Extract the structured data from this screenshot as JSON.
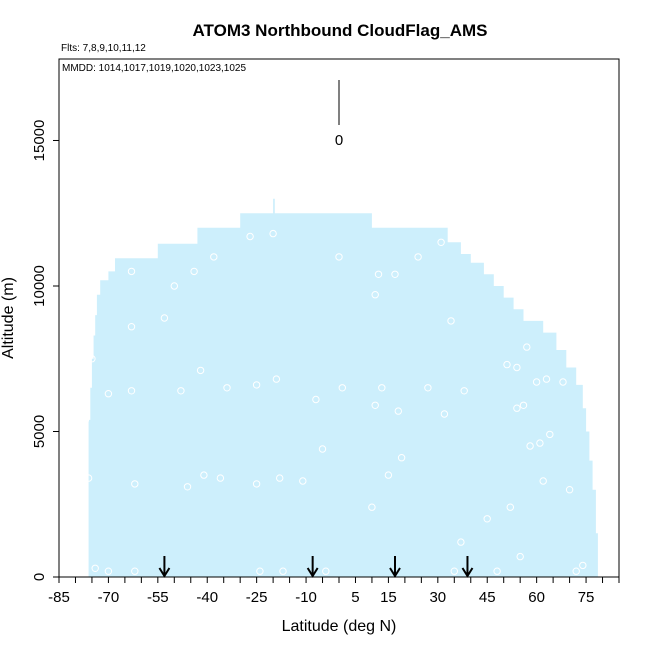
{
  "chart_data": {
    "type": "scatter",
    "title": "ATOM3 Northbound CloudFlag_AMS",
    "subtitle_flights": "Flts: 7,8,9,10,11,12",
    "subtitle_dates": "MMDD: 1014,1017,1019,1020,1023,1025",
    "xlabel": "Latitude (deg N)",
    "ylabel": "Altitude (m)",
    "xlim": [
      -85,
      85
    ],
    "ylim": [
      0,
      17800
    ],
    "x_ticks": [
      -85,
      -70,
      -55,
      -40,
      -25,
      -10,
      5,
      15,
      30,
      45,
      60,
      75
    ],
    "x_tick_labels": [
      "-85",
      "-70",
      "-55",
      "-40",
      "-25",
      "-10",
      "5",
      "15",
      "30",
      "45",
      "60",
      "75"
    ],
    "y_ticks": [
      0,
      5000,
      10000,
      15000
    ],
    "y_tick_labels": [
      "0",
      "5000",
      "10000",
      "15000"
    ],
    "legend_value_label": "0",
    "coverage_color": "#cdeffc",
    "arrow_latitudes": [
      -53,
      -8,
      17,
      39
    ],
    "coverage_profile": [
      [
        -76,
        5400
      ],
      [
        -75.5,
        6500
      ],
      [
        -75,
        7500
      ],
      [
        -74.5,
        8300
      ],
      [
        -74,
        9000
      ],
      [
        -73.5,
        9700
      ],
      [
        -72.5,
        10200
      ],
      [
        -70,
        10500
      ],
      [
        -68,
        10950
      ],
      [
        -55,
        11450
      ],
      [
        -43,
        12000
      ],
      [
        -30,
        12500
      ],
      [
        -20,
        13000
      ],
      [
        -19.5,
        12500
      ],
      [
        10,
        12000
      ],
      [
        33,
        11500
      ],
      [
        37,
        11100
      ],
      [
        40,
        10800
      ],
      [
        44,
        10400
      ],
      [
        47,
        10000
      ],
      [
        50,
        9600
      ],
      [
        53,
        9200
      ],
      [
        56,
        8800
      ],
      [
        62,
        8400
      ],
      [
        66,
        7800
      ],
      [
        69,
        7200
      ],
      [
        72,
        6600
      ],
      [
        74,
        5800
      ],
      [
        75,
        5000
      ],
      [
        76,
        4000
      ],
      [
        77,
        3000
      ],
      [
        78,
        1500
      ]
    ],
    "points": [
      [
        -77,
        5400
      ],
      [
        -76,
        3400
      ],
      [
        -75,
        9500
      ],
      [
        -75,
        7500
      ],
      [
        -74,
        300
      ],
      [
        -70,
        6300
      ],
      [
        -70,
        200
      ],
      [
        -63,
        10500
      ],
      [
        -63,
        8600
      ],
      [
        -63,
        6400
      ],
      [
        -62,
        3200
      ],
      [
        -62,
        200
      ],
      [
        -53,
        8900
      ],
      [
        -50,
        10000
      ],
      [
        -48,
        6400
      ],
      [
        -46,
        3100
      ],
      [
        -44,
        10500
      ],
      [
        -42,
        7100
      ],
      [
        -41,
        3500
      ],
      [
        -38,
        11000
      ],
      [
        -36,
        3400
      ],
      [
        -34,
        6500
      ],
      [
        -27,
        11700
      ],
      [
        -25,
        6600
      ],
      [
        -25,
        3200
      ],
      [
        -24,
        200
      ],
      [
        -20,
        11800
      ],
      [
        -19,
        6800
      ],
      [
        -18,
        3400
      ],
      [
        -17,
        200
      ],
      [
        -11,
        3300
      ],
      [
        -7,
        6100
      ],
      [
        -5,
        4400
      ],
      [
        -4,
        200
      ],
      [
        0,
        11000
      ],
      [
        1,
        6500
      ],
      [
        10,
        2400
      ],
      [
        11,
        5900
      ],
      [
        11,
        9700
      ],
      [
        12,
        10400
      ],
      [
        13,
        6500
      ],
      [
        15,
        3500
      ],
      [
        17,
        10400
      ],
      [
        18,
        5700
      ],
      [
        19,
        4100
      ],
      [
        24,
        11000
      ],
      [
        27,
        6500
      ],
      [
        31,
        11500
      ],
      [
        32,
        5600
      ],
      [
        34,
        8800
      ],
      [
        35,
        200
      ],
      [
        37,
        1200
      ],
      [
        38,
        6400
      ],
      [
        45,
        2000
      ],
      [
        48,
        200
      ],
      [
        51,
        7300
      ],
      [
        52,
        2400
      ],
      [
        54,
        7200
      ],
      [
        54,
        5800
      ],
      [
        55,
        700
      ],
      [
        56,
        5900
      ],
      [
        57,
        7900
      ],
      [
        58,
        4500
      ],
      [
        60,
        6700
      ],
      [
        61,
        4600
      ],
      [
        62,
        3300
      ],
      [
        63,
        6800
      ],
      [
        64,
        4900
      ],
      [
        68,
        6700
      ],
      [
        70,
        3000
      ],
      [
        72,
        200
      ],
      [
        74,
        400
      ]
    ]
  }
}
